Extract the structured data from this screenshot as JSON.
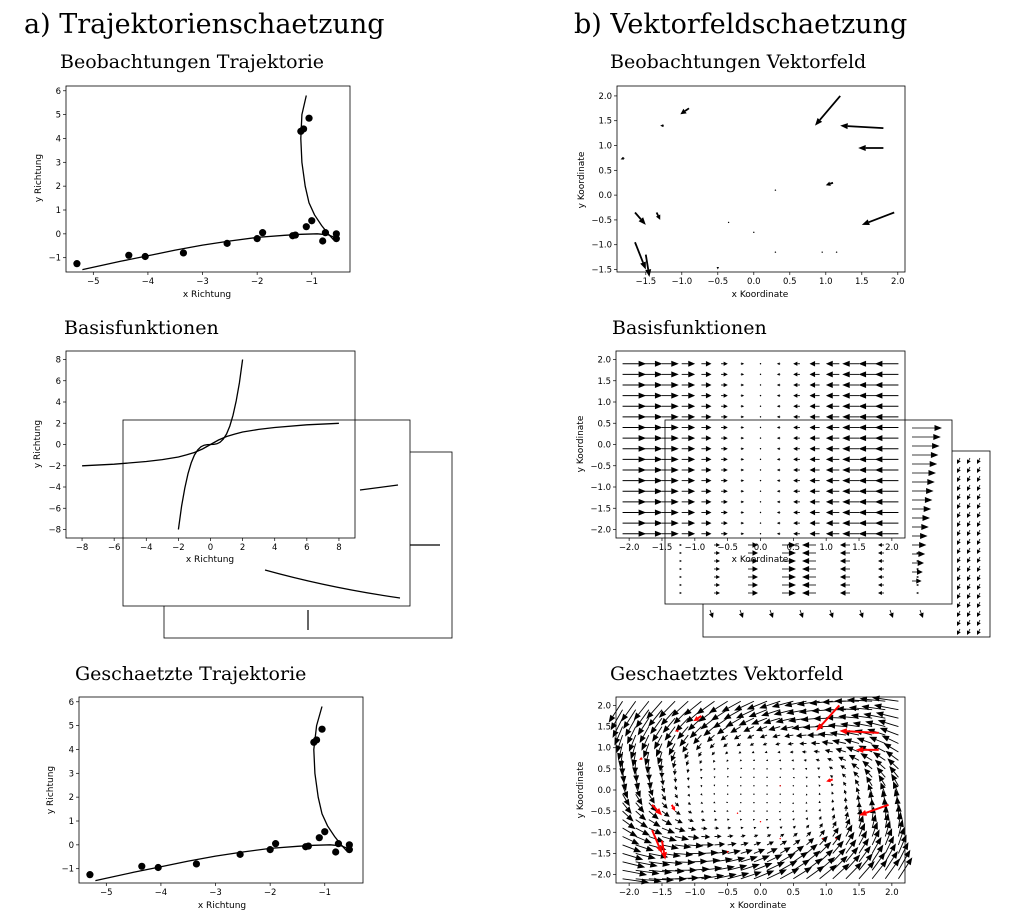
{
  "section_a": {
    "label": "a) Trajektorienschaetzung"
  },
  "section_b": {
    "label": "b) Vektorfeldschaetzung"
  },
  "chart_data": [
    {
      "id": "obs-trajectory",
      "type": "scatter",
      "title": "Beobachtungen Trajektorie",
      "xlabel": "x Richtung",
      "ylabel": "y Richtung",
      "xlim": [
        -5.5,
        -0.3
      ],
      "ylim": [
        -1.6,
        6.2
      ],
      "xticks": [
        -5,
        -4,
        -3,
        -2,
        -1
      ],
      "yticks": [
        -1,
        0,
        1,
        2,
        3,
        4,
        5,
        6
      ],
      "points": [
        [
          -5.3,
          -1.25
        ],
        [
          -4.35,
          -0.9
        ],
        [
          -4.05,
          -0.95
        ],
        [
          -3.35,
          -0.8
        ],
        [
          -2.55,
          -0.4
        ],
        [
          -2.0,
          -0.2
        ],
        [
          -1.9,
          0.05
        ],
        [
          -1.35,
          -0.08
        ],
        [
          -1.3,
          -0.05
        ],
        [
          -1.1,
          0.3
        ],
        [
          -1.0,
          0.55
        ],
        [
          -0.8,
          -0.3
        ],
        [
          -0.75,
          0.05
        ],
        [
          -0.55,
          -0.2
        ],
        [
          -0.55,
          0.0
        ],
        [
          -1.2,
          4.3
        ],
        [
          -1.15,
          4.4
        ],
        [
          -1.05,
          4.85
        ]
      ],
      "curves": [
        [
          [
            -5.2,
            -1.5
          ],
          [
            -4.5,
            -1.15
          ],
          [
            -4,
            -0.92
          ],
          [
            -3.5,
            -0.68
          ],
          [
            -3,
            -0.47
          ],
          [
            -2.5,
            -0.3
          ],
          [
            -2,
            -0.15
          ],
          [
            -1.5,
            -0.06
          ],
          [
            -1.2,
            -0.02
          ],
          [
            -0.9,
            0.0
          ],
          [
            -0.7,
            -0.04
          ],
          [
            -0.55,
            -0.18
          ]
        ],
        [
          [
            -1.1,
            5.8
          ],
          [
            -1.18,
            5.0
          ],
          [
            -1.2,
            4.0
          ],
          [
            -1.18,
            3.0
          ],
          [
            -1.12,
            2.0
          ],
          [
            -1.05,
            1.3
          ],
          [
            -0.95,
            0.8
          ],
          [
            -0.82,
            0.35
          ],
          [
            -0.7,
            0.0
          ],
          [
            -0.6,
            -0.25
          ]
        ]
      ]
    },
    {
      "id": "basis-functions",
      "type": "line",
      "title": "Basisfunktionen",
      "xlabel": "x Richtung",
      "ylabel": "y Richtung",
      "xlim": [
        -9,
        9
      ],
      "ylim": [
        -8.8,
        8.8
      ],
      "xticks": [
        -8,
        -6,
        -4,
        -2,
        0,
        2,
        4,
        6,
        8
      ],
      "yticks": [
        -8,
        -6,
        -4,
        -2,
        0,
        2,
        4,
        6,
        8
      ],
      "series": [
        {
          "points": [
            [
              -8,
              -2
            ],
            [
              -6,
              -1.85
            ],
            [
              -4,
              -1.6
            ],
            [
              -3,
              -1.42
            ],
            [
              -2,
              -1.18
            ],
            [
              -1.5,
              -0.98
            ],
            [
              -1,
              -0.75
            ],
            [
              -0.5,
              -0.42
            ],
            [
              0,
              0
            ],
            [
              0.5,
              0.42
            ],
            [
              1,
              0.75
            ],
            [
              1.5,
              0.98
            ],
            [
              2,
              1.18
            ],
            [
              3,
              1.42
            ],
            [
              4,
              1.6
            ],
            [
              6,
              1.85
            ],
            [
              8,
              2
            ]
          ]
        },
        {
          "points": [
            [
              -2,
              -8
            ],
            [
              -1.8,
              -5.8
            ],
            [
              -1.6,
              -4.1
            ],
            [
              -1.4,
              -2.75
            ],
            [
              -1.2,
              -1.73
            ],
            [
              -1.0,
              -1.0
            ],
            [
              -0.8,
              -0.51
            ],
            [
              -0.6,
              -0.22
            ],
            [
              -0.4,
              -0.064
            ],
            [
              -0.2,
              -0.008
            ],
            [
              0,
              0
            ],
            [
              0.2,
              0.008
            ],
            [
              0.4,
              0.064
            ],
            [
              0.6,
              0.22
            ],
            [
              0.8,
              0.51
            ],
            [
              1.0,
              1.0
            ],
            [
              1.2,
              1.73
            ],
            [
              1.4,
              2.75
            ],
            [
              1.6,
              4.1
            ],
            [
              1.8,
              5.8
            ],
            [
              2,
              8
            ]
          ]
        }
      ]
    },
    {
      "id": "estimated-trajectory",
      "type": "scatter",
      "title": "Geschaetzte Trajektorie",
      "xlabel": "x Richtung",
      "ylabel": "y Richtung",
      "xlim": [
        -5.5,
        -0.3
      ],
      "ylim": [
        -1.6,
        6.2
      ],
      "xticks": [
        -5,
        -4,
        -3,
        -2,
        -1
      ],
      "yticks": [
        -1,
        0,
        1,
        2,
        3,
        4,
        5,
        6
      ],
      "points": [
        [
          -5.3,
          -1.25
        ],
        [
          -4.35,
          -0.9
        ],
        [
          -4.05,
          -0.95
        ],
        [
          -3.35,
          -0.8
        ],
        [
          -2.55,
          -0.4
        ],
        [
          -2.0,
          -0.2
        ],
        [
          -1.9,
          0.05
        ],
        [
          -1.35,
          -0.08
        ],
        [
          -1.3,
          -0.05
        ],
        [
          -1.1,
          0.3
        ],
        [
          -1.0,
          0.55
        ],
        [
          -0.8,
          -0.3
        ],
        [
          -0.75,
          0.05
        ],
        [
          -0.55,
          -0.2
        ],
        [
          -0.55,
          0.0
        ],
        [
          -1.2,
          4.3
        ],
        [
          -1.15,
          4.4
        ],
        [
          -1.05,
          4.85
        ]
      ],
      "curves": [
        [
          [
            -5.2,
            -1.5
          ],
          [
            -4.5,
            -1.15
          ],
          [
            -4,
            -0.92
          ],
          [
            -3.5,
            -0.68
          ],
          [
            -3,
            -0.47
          ],
          [
            -2.5,
            -0.3
          ],
          [
            -2,
            -0.15
          ],
          [
            -1.5,
            -0.06
          ],
          [
            -1.2,
            -0.02
          ],
          [
            -0.9,
            0.0
          ],
          [
            -0.7,
            -0.04
          ],
          [
            -0.55,
            -0.18
          ]
        ],
        [
          [
            -1.05,
            5.8
          ],
          [
            -1.15,
            5.0
          ],
          [
            -1.2,
            4.0
          ],
          [
            -1.18,
            3.0
          ],
          [
            -1.12,
            2.0
          ],
          [
            -1.05,
            1.3
          ],
          [
            -0.95,
            0.8
          ],
          [
            -0.82,
            0.35
          ],
          [
            -0.7,
            0.0
          ],
          [
            -0.6,
            -0.25
          ]
        ]
      ]
    },
    {
      "id": "obs-vectorfield",
      "type": "quiver",
      "title": "Beobachtungen Vektorfeld",
      "xlabel": "x Koordinate",
      "ylabel": "y Koordinate",
      "xlim": [
        -1.9,
        2.1
      ],
      "ylim": [
        -1.55,
        2.2
      ],
      "xticks": [
        -1.5,
        -1.0,
        -0.5,
        0.0,
        0.5,
        1.0,
        1.5,
        2.0
      ],
      "yticks": [
        -1.5,
        -1.0,
        -0.5,
        0.0,
        0.5,
        1.0,
        1.5,
        2.0
      ],
      "arrows": [
        [
          1.2,
          2.0,
          -0.35,
          -0.6
        ],
        [
          -0.9,
          1.75,
          -0.12,
          -0.12
        ],
        [
          -1.25,
          1.4,
          -0.05,
          0.0
        ],
        [
          1.8,
          1.35,
          -0.6,
          0.05
        ],
        [
          1.8,
          0.95,
          -0.35,
          0.0
        ],
        [
          -1.8,
          0.75,
          -0.05,
          -0.03
        ],
        [
          1.1,
          0.25,
          -0.1,
          -0.05
        ],
        [
          0.3,
          0.1,
          0.0,
          0.0
        ],
        [
          -1.65,
          -0.35,
          0.15,
          -0.25
        ],
        [
          -1.35,
          -0.35,
          0.05,
          -0.15
        ],
        [
          1.95,
          -0.35,
          -0.45,
          -0.25
        ],
        [
          -0.35,
          -0.55,
          0.0,
          0.0
        ],
        [
          0.0,
          -0.75,
          0.0,
          0.0
        ],
        [
          -1.65,
          -0.95,
          0.15,
          -0.55
        ],
        [
          -1.5,
          -1.2,
          0.05,
          -0.45
        ],
        [
          -0.5,
          -1.45,
          0.0,
          -0.05
        ],
        [
          0.3,
          -1.15,
          0.0,
          0.0
        ],
        [
          0.95,
          -1.15,
          0.0,
          0.0
        ],
        [
          1.15,
          -1.15,
          0.0,
          0.0
        ]
      ]
    },
    {
      "id": "basis-vectorfield",
      "type": "quiver",
      "title": "Basisfunktionen",
      "xlabel": "x Koordinate",
      "ylabel": "y Koordinate",
      "xlim": [
        -2.2,
        2.2
      ],
      "ylim": [
        -2.2,
        2.2
      ],
      "xticks": [
        -2.0,
        -1.5,
        -1.0,
        -0.5,
        0.0,
        0.5,
        1.0,
        1.5,
        2.0
      ],
      "yticks": [
        -2.0,
        -1.5,
        -1.0,
        -0.5,
        0.0,
        0.5,
        1.0,
        1.5,
        2.0
      ],
      "field": "u=-x, v=0"
    },
    {
      "id": "estimated-vectorfield",
      "type": "quiver",
      "title": "Geschaetztes Vektorfeld",
      "xlabel": "x Koordinate",
      "ylabel": "y Koordinate",
      "xlim": [
        -2.2,
        2.2
      ],
      "ylim": [
        -2.2,
        2.2
      ],
      "xticks": [
        -2.0,
        -1.5,
        -1.0,
        -0.5,
        0.0,
        0.5,
        1.0,
        1.5,
        2.0
      ],
      "yticks": [
        -2.0,
        -1.5,
        -1.0,
        -0.5,
        0.0,
        0.5,
        1.0,
        1.5,
        2.0
      ],
      "observed_color": "#ff0000",
      "field_color": "#000000"
    }
  ]
}
